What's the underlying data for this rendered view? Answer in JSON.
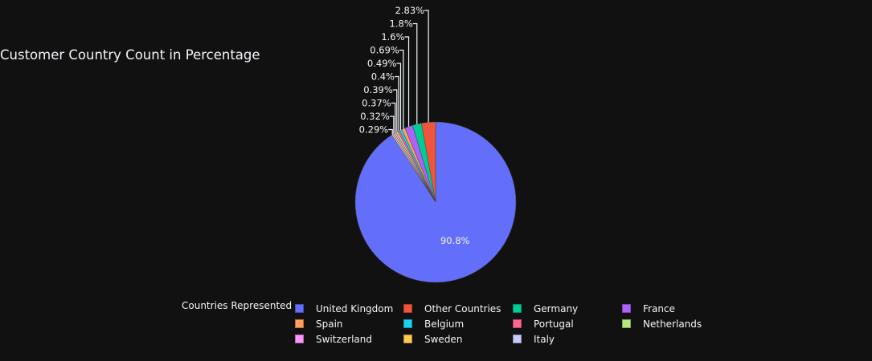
{
  "chart_data": {
    "type": "pie",
    "title": "Customer Country Count in Percentage",
    "legend_title": "Countries Represented",
    "legend_placement": "bottom",
    "slices": [
      {
        "label": "United Kingdom",
        "value": 90.8,
        "text": "90.8%",
        "color": "#636efa"
      },
      {
        "label": "Other Countries",
        "value": 2.83,
        "text": "2.83%",
        "color": "#EF553B"
      },
      {
        "label": "Germany",
        "value": 1.8,
        "text": "1.8%",
        "color": "#00cc96"
      },
      {
        "label": "France",
        "value": 1.6,
        "text": "1.6%",
        "color": "#ab63fa"
      },
      {
        "label": "Spain",
        "value": 0.69,
        "text": "0.69%",
        "color": "#FFA15A"
      },
      {
        "label": "Belgium",
        "value": 0.49,
        "text": "0.49%",
        "color": "#19d3f3"
      },
      {
        "label": "Portugal",
        "value": 0.4,
        "text": "0.4%",
        "color": "#FF6692"
      },
      {
        "label": "Netherlands",
        "value": 0.39,
        "text": "0.39%",
        "color": "#B6E880"
      },
      {
        "label": "Switzerland",
        "value": 0.37,
        "text": "0.37%",
        "color": "#FF97FF"
      },
      {
        "label": "Sweden",
        "value": 0.32,
        "text": "0.32%",
        "color": "#FECB52"
      },
      {
        "label": "Italy",
        "value": 0.29,
        "text": "0.29%",
        "color": "#C6CAFD"
      }
    ]
  }
}
